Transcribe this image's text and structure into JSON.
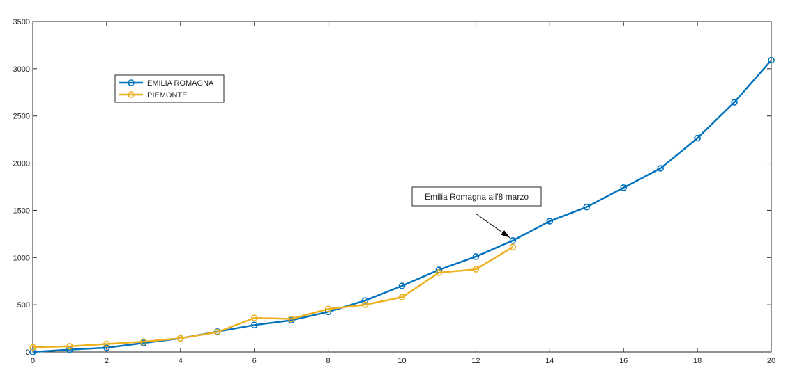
{
  "chart_data": {
    "type": "line",
    "title": "",
    "xlabel": "",
    "ylabel": "",
    "xlim": [
      0,
      20
    ],
    "ylim": [
      0,
      3500
    ],
    "x_ticks": [
      "0",
      "2",
      "4",
      "6",
      "8",
      "10",
      "12",
      "14",
      "16",
      "18",
      "20"
    ],
    "y_ticks": [
      "0",
      "500",
      "1000",
      "1500",
      "2000",
      "2500",
      "3000",
      "3500"
    ],
    "grid": false,
    "legend_position": "top-left",
    "series": [
      {
        "name": "EMILIA ROMAGNA",
        "color": "#0072BD",
        "marker": "circle",
        "x": [
          0,
          1,
          2,
          3,
          4,
          5,
          6,
          7,
          8,
          9,
          10,
          11,
          12,
          13,
          14,
          15,
          16,
          17,
          18,
          19,
          20
        ],
        "y": [
          0,
          25,
          45,
          95,
          145,
          215,
          285,
          335,
          425,
          545,
          700,
          870,
          1010,
          1180,
          1385,
          1535,
          1740,
          1945,
          2265,
          2645,
          3090
        ]
      },
      {
        "name": "PIEMONTE",
        "color": "#EDB120",
        "marker": "circle",
        "x": [
          0,
          1,
          2,
          3,
          4,
          5,
          6,
          7,
          8,
          9,
          10,
          11,
          12,
          13
        ],
        "y": [
          50,
          60,
          85,
          110,
          145,
          210,
          360,
          350,
          455,
          500,
          580,
          840,
          875,
          1110
        ]
      }
    ],
    "annotations": [
      {
        "text": "Emilia Romagna all'8 marzo",
        "arrow_to": [
          13,
          1180
        ]
      }
    ]
  }
}
